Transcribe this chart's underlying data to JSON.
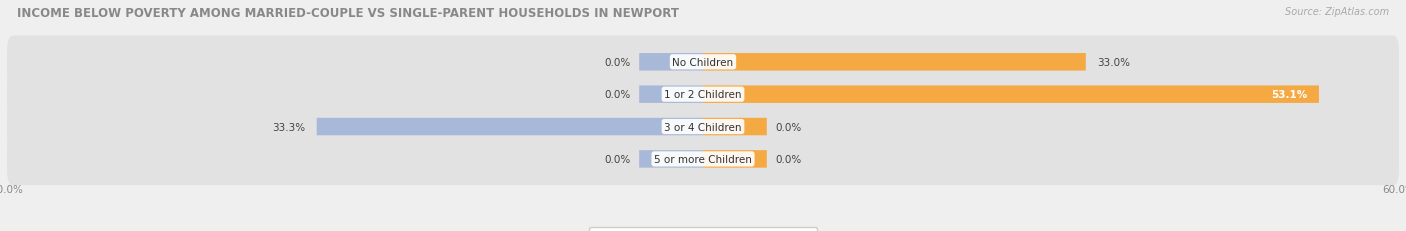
{
  "title": "INCOME BELOW POVERTY AMONG MARRIED-COUPLE VS SINGLE-PARENT HOUSEHOLDS IN NEWPORT",
  "source": "Source: ZipAtlas.com",
  "categories": [
    "No Children",
    "1 or 2 Children",
    "3 or 4 Children",
    "5 or more Children"
  ],
  "married_values": [
    0.0,
    0.0,
    33.3,
    0.0
  ],
  "single_values": [
    33.0,
    53.1,
    0.0,
    0.0
  ],
  "married_color": "#a8b8d8",
  "single_color": "#f5a943",
  "axis_limit": 60.0,
  "background_color": "#efefef",
  "bar_bg_color": "#e2e2e2",
  "title_fontsize": 8.5,
  "source_fontsize": 7,
  "label_fontsize": 7.5,
  "tick_fontsize": 7.5,
  "legend_fontsize": 7.5,
  "bar_height": 0.62
}
